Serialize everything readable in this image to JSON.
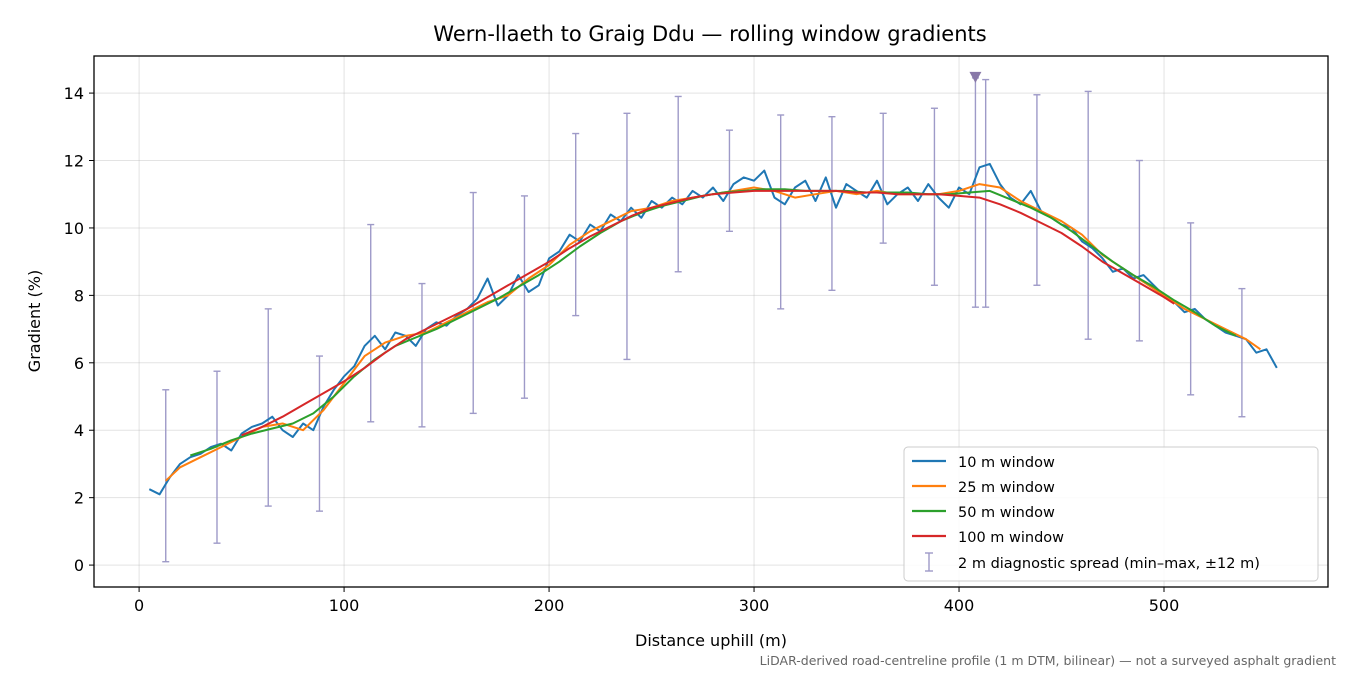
{
  "chart_data": {
    "type": "line",
    "title": "Wern-llaeth to Graig Ddu — rolling window gradients",
    "xlabel": "Distance uphill (m)",
    "ylabel": "Gradient (%)",
    "xlim": [
      -22,
      580
    ],
    "ylim": [
      -0.65,
      15.1
    ],
    "xticks": [
      0,
      100,
      200,
      300,
      400,
      500
    ],
    "yticks": [
      0,
      2,
      4,
      6,
      8,
      10,
      12,
      14
    ],
    "grid": true,
    "legend_position": "lower-right",
    "footnote": "LiDAR-derived road-centreline profile (1 m DTM, bilinear) — not a surveyed asphalt gradient",
    "series": [
      {
        "name": "10 m window",
        "color": "#1f77b4",
        "x": [
          5,
          10,
          15,
          20,
          25,
          30,
          35,
          40,
          45,
          50,
          55,
          60,
          65,
          70,
          75,
          80,
          85,
          90,
          95,
          100,
          105,
          110,
          115,
          120,
          125,
          130,
          135,
          140,
          145,
          150,
          155,
          160,
          165,
          170,
          175,
          180,
          185,
          190,
          195,
          200,
          205,
          210,
          215,
          220,
          225,
          230,
          235,
          240,
          245,
          250,
          255,
          260,
          265,
          270,
          275,
          280,
          285,
          290,
          295,
          300,
          305,
          310,
          315,
          320,
          325,
          330,
          335,
          340,
          345,
          350,
          355,
          360,
          365,
          370,
          375,
          380,
          385,
          390,
          395,
          400,
          405,
          410,
          415,
          420,
          425,
          430,
          435,
          440,
          445,
          450,
          455,
          460,
          465,
          470,
          475,
          480,
          485,
          490,
          495,
          500,
          505,
          510,
          515,
          520,
          525,
          530,
          535,
          540,
          545,
          550,
          555
        ],
        "y": [
          2.25,
          2.1,
          2.6,
          3.0,
          3.2,
          3.3,
          3.5,
          3.6,
          3.4,
          3.9,
          4.1,
          4.2,
          4.4,
          4.0,
          3.8,
          4.2,
          4.0,
          4.7,
          5.2,
          5.6,
          5.9,
          6.5,
          6.8,
          6.4,
          6.9,
          6.8,
          6.5,
          7.0,
          7.2,
          7.1,
          7.4,
          7.6,
          7.9,
          8.5,
          7.7,
          8.0,
          8.6,
          8.1,
          8.3,
          9.1,
          9.3,
          9.8,
          9.6,
          10.1,
          9.9,
          10.4,
          10.2,
          10.6,
          10.3,
          10.8,
          10.6,
          10.9,
          10.7,
          11.1,
          10.9,
          11.2,
          10.8,
          11.3,
          11.5,
          11.4,
          11.7,
          10.9,
          10.7,
          11.2,
          11.4,
          10.8,
          11.5,
          10.6,
          11.3,
          11.1,
          10.9,
          11.4,
          10.7,
          11.0,
          11.2,
          10.8,
          11.3,
          10.9,
          10.6,
          11.2,
          11.0,
          11.8,
          11.9,
          11.3,
          10.9,
          10.7,
          11.1,
          10.5,
          10.3,
          10.1,
          10.0,
          9.6,
          9.4,
          9.1,
          8.7,
          8.8,
          8.5,
          8.6,
          8.3,
          8.0,
          7.8,
          7.5,
          7.6,
          7.3,
          7.1,
          6.9,
          6.8,
          6.7,
          6.3,
          6.4,
          5.85
        ]
      },
      {
        "name": "25 m window",
        "color": "#ff7f0e",
        "x": [
          13,
          20,
          30,
          40,
          50,
          60,
          70,
          80,
          90,
          100,
          110,
          120,
          130,
          140,
          150,
          160,
          170,
          180,
          190,
          200,
          210,
          220,
          230,
          240,
          250,
          260,
          270,
          280,
          290,
          300,
          310,
          320,
          330,
          340,
          350,
          360,
          370,
          380,
          390,
          400,
          410,
          420,
          430,
          440,
          450,
          460,
          470,
          480,
          490,
          500,
          510,
          520,
          530,
          540,
          547
        ],
        "y": [
          2.5,
          2.9,
          3.2,
          3.5,
          3.8,
          4.1,
          4.2,
          4.0,
          4.6,
          5.4,
          6.2,
          6.6,
          6.8,
          6.9,
          7.2,
          7.5,
          7.8,
          8.0,
          8.5,
          8.9,
          9.5,
          9.9,
          10.2,
          10.5,
          10.6,
          10.8,
          10.9,
          11.0,
          11.1,
          11.2,
          11.1,
          10.9,
          11.0,
          11.1,
          11.0,
          11.1,
          11.0,
          11.0,
          11.0,
          11.1,
          11.3,
          11.2,
          10.8,
          10.5,
          10.2,
          9.8,
          9.2,
          8.8,
          8.4,
          8.0,
          7.6,
          7.3,
          7.0,
          6.7,
          6.4
        ]
      },
      {
        "name": "50 m window",
        "color": "#2ca02c",
        "x": [
          25,
          35,
          45,
          55,
          65,
          75,
          85,
          95,
          105,
          115,
          125,
          135,
          145,
          155,
          165,
          175,
          185,
          195,
          205,
          215,
          225,
          235,
          245,
          255,
          265,
          275,
          285,
          295,
          305,
          315,
          325,
          335,
          345,
          355,
          365,
          375,
          385,
          395,
          405,
          415,
          425,
          435,
          445,
          455,
          465,
          475,
          485,
          495,
          505,
          515,
          525,
          535
        ],
        "y": [
          3.25,
          3.45,
          3.7,
          3.9,
          4.05,
          4.2,
          4.5,
          5.0,
          5.6,
          6.1,
          6.5,
          6.75,
          7.0,
          7.3,
          7.6,
          7.9,
          8.25,
          8.6,
          9.0,
          9.45,
          9.85,
          10.2,
          10.45,
          10.65,
          10.8,
          10.95,
          11.05,
          11.1,
          11.15,
          11.15,
          11.1,
          11.1,
          11.1,
          11.05,
          11.05,
          11.05,
          11.0,
          11.0,
          11.05,
          11.1,
          10.85,
          10.6,
          10.3,
          9.9,
          9.45,
          9.0,
          8.6,
          8.25,
          7.85,
          7.5,
          7.1,
          6.8
        ]
      },
      {
        "name": "100 m window",
        "color": "#d62728",
        "x": [
          50,
          60,
          70,
          80,
          90,
          100,
          110,
          120,
          130,
          140,
          150,
          160,
          170,
          180,
          190,
          200,
          210,
          220,
          230,
          240,
          250,
          260,
          270,
          280,
          290,
          300,
          310,
          320,
          330,
          340,
          350,
          360,
          370,
          380,
          390,
          400,
          410,
          420,
          430,
          440,
          450,
          460,
          470,
          480,
          490,
          500,
          505
        ],
        "y": [
          3.85,
          4.1,
          4.4,
          4.75,
          5.1,
          5.45,
          5.85,
          6.3,
          6.7,
          7.0,
          7.3,
          7.6,
          7.95,
          8.3,
          8.65,
          9.0,
          9.4,
          9.75,
          10.05,
          10.35,
          10.6,
          10.75,
          10.9,
          11.0,
          11.05,
          11.1,
          11.1,
          11.1,
          11.1,
          11.1,
          11.05,
          11.05,
          11.0,
          11.0,
          11.0,
          10.95,
          10.9,
          10.7,
          10.45,
          10.15,
          9.85,
          9.45,
          9.0,
          8.65,
          8.3,
          7.95,
          7.75
        ]
      }
    ],
    "error_bars": {
      "name": "2 m diagnostic spread (min–max, ±12 m)",
      "color": "#9e9ac8",
      "points": [
        {
          "x": 13,
          "min": 0.1,
          "max": 5.2
        },
        {
          "x": 38,
          "min": 0.65,
          "max": 5.75
        },
        {
          "x": 63,
          "min": 1.75,
          "max": 7.6
        },
        {
          "x": 88,
          "min": 1.6,
          "max": 6.2
        },
        {
          "x": 113,
          "min": 4.25,
          "max": 10.1
        },
        {
          "x": 138,
          "min": 4.1,
          "max": 8.35
        },
        {
          "x": 163,
          "min": 4.5,
          "max": 11.05
        },
        {
          "x": 188,
          "min": 4.95,
          "max": 10.95
        },
        {
          "x": 213,
          "min": 7.4,
          "max": 12.8
        },
        {
          "x": 238,
          "min": 6.1,
          "max": 13.4
        },
        {
          "x": 263,
          "min": 8.7,
          "max": 13.9
        },
        {
          "x": 288,
          "min": 9.9,
          "max": 12.9
        },
        {
          "x": 313,
          "min": 7.6,
          "max": 13.35
        },
        {
          "x": 338,
          "min": 8.15,
          "max": 13.3
        },
        {
          "x": 363,
          "min": 9.55,
          "max": 13.4
        },
        {
          "x": 388,
          "min": 8.3,
          "max": 13.55
        },
        {
          "x": 408,
          "min": 7.65,
          "max": 14.45
        },
        {
          "x": 413,
          "min": 7.65,
          "max": 14.4
        },
        {
          "x": 438,
          "min": 8.3,
          "max": 13.95
        },
        {
          "x": 463,
          "min": 6.7,
          "max": 14.05
        },
        {
          "x": 488,
          "min": 6.65,
          "max": 12.0
        },
        {
          "x": 513,
          "min": 5.05,
          "max": 10.15
        },
        {
          "x": 538,
          "min": 4.4,
          "max": 8.2
        }
      ]
    },
    "marker": {
      "x": 408,
      "y": 14.45,
      "shape": "triangle-down",
      "color": "#8878a8"
    }
  }
}
